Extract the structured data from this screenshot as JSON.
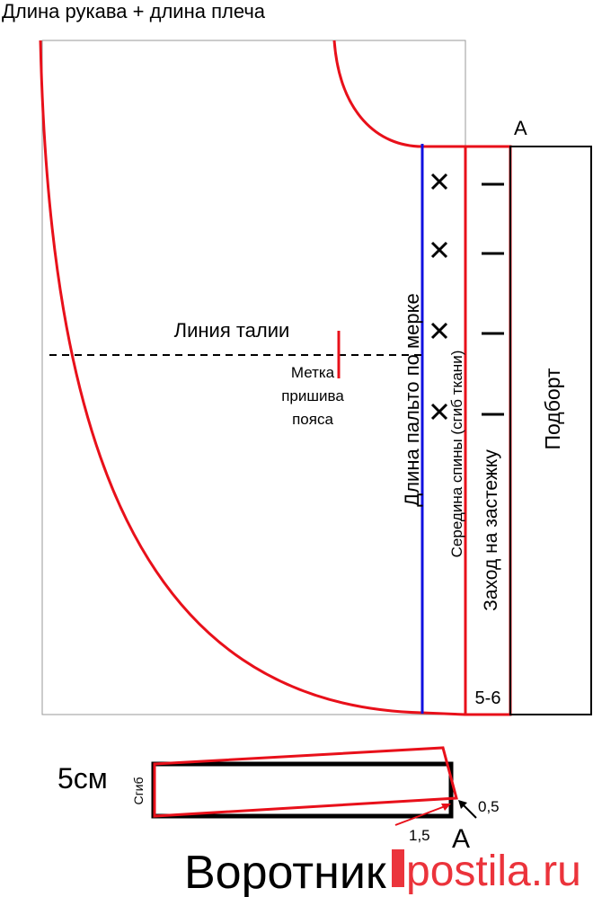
{
  "header": {
    "title": "Длина рукава + длина плеча"
  },
  "pattern": {
    "corner_label": "A",
    "facing_label": "Подборт",
    "overlap_label": "Заход на застежку",
    "center_back_label": "Середина спины (сгиб ткани)",
    "length_label": "Длина пальто по мерке",
    "waist_label": "Линия талии",
    "belt_mark_label": [
      "Метка",
      "пришива",
      "пояса"
    ],
    "overlap_width": "5-6"
  },
  "collar": {
    "width_label": "5см",
    "fold_label": "Сгиб",
    "offset_small": "0,5",
    "offset_large": "1,5",
    "corner_label": "A",
    "title": "Воротник"
  },
  "watermark": "postila.ru"
}
